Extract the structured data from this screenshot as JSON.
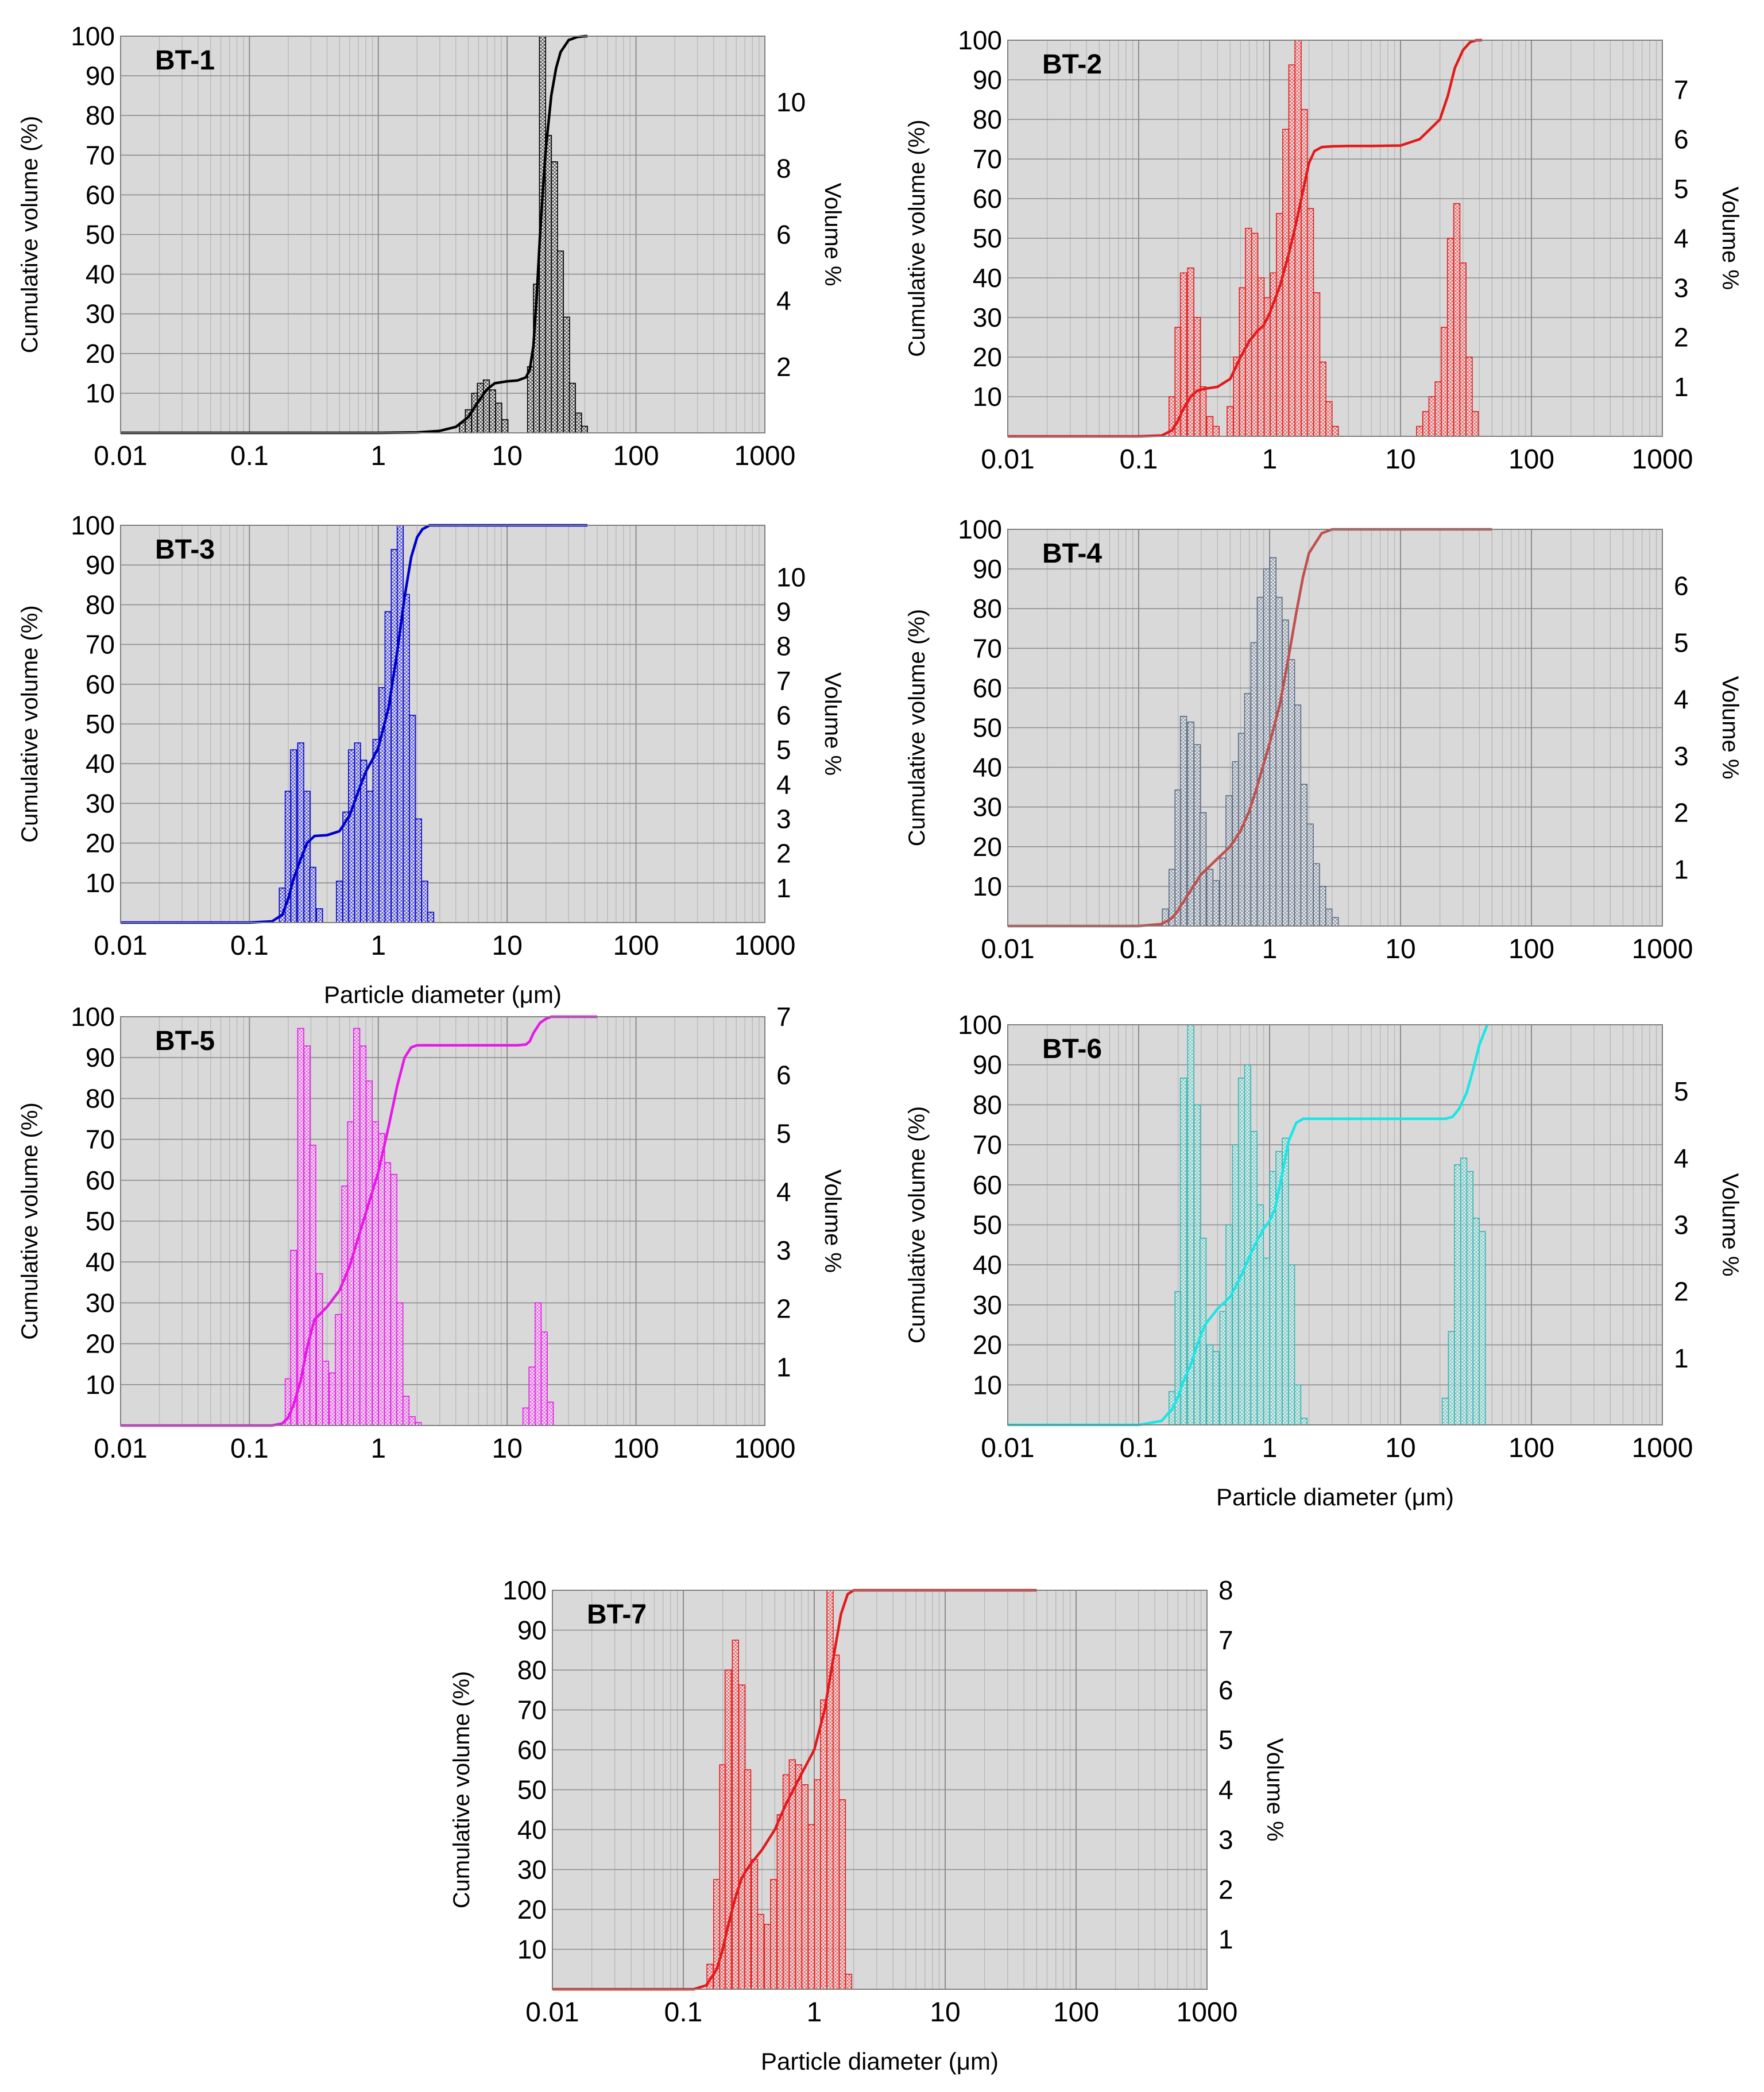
{
  "axis_text": {
    "left_label": "Cumulative volume (%)",
    "right_label": "Volume %",
    "x_label": "Particle diameter (μm)",
    "x_ticks": [
      "0.01",
      "0.1",
      "1",
      "10",
      "100",
      "1000"
    ],
    "left_ticks": [
      "10",
      "20",
      "30",
      "40",
      "50",
      "60",
      "70",
      "80",
      "90",
      "100"
    ]
  },
  "chart_data": [
    {
      "type": "bar",
      "title": "BT-1",
      "color": "#000000",
      "xlabel": "",
      "xscale": "log",
      "xlim": [
        0.01,
        1000
      ],
      "ylabel": "Cumulative volume (%)",
      "ylim": [
        0,
        100
      ],
      "y2label": "Volume %",
      "y2lim": [
        0,
        12
      ],
      "y2ticks": [
        2,
        4,
        6,
        8,
        10
      ],
      "series": [
        {
          "name": "Volume %",
          "type": "bar",
          "axis": "right",
          "x": [
            4.5,
            5.0,
            5.6,
            6.2,
            6.9,
            7.7,
            8.6,
            9.6,
            15.2,
            16.9,
            18.8,
            20.9,
            23.3,
            25.9,
            28.9,
            32.1,
            35.8,
            39.8
          ],
          "values": [
            0.3,
            0.7,
            1.2,
            1.5,
            1.6,
            1.3,
            0.9,
            0.4,
            2.0,
            4.5,
            12.0,
            9.0,
            8.2,
            5.5,
            3.5,
            1.5,
            0.6,
            0.2
          ]
        },
        {
          "name": "Cumulative volume (%)",
          "type": "line",
          "axis": "left",
          "x": [
            0.01,
            1,
            2,
            3,
            4,
            5,
            6,
            7,
            8,
            10,
            12,
            14,
            15,
            16,
            17,
            18,
            19,
            20,
            22,
            24,
            26,
            30,
            35,
            40,
            42
          ],
          "values": [
            0,
            0,
            0.1,
            0.5,
            1.5,
            4,
            8,
            11,
            12.5,
            13,
            13.2,
            14,
            16,
            22,
            35,
            50,
            62,
            72,
            85,
            92,
            96,
            99,
            99.8,
            100,
            100
          ]
        }
      ]
    },
    {
      "type": "bar",
      "title": "BT-2",
      "color": "#e31a1c",
      "xlabel": "",
      "xscale": "log",
      "xlim": [
        0.01,
        1000
      ],
      "ylabel": "Cumulative volume (%)",
      "ylim": [
        0,
        100
      ],
      "y2label": "Volume %",
      "y2lim": [
        0,
        8
      ],
      "y2ticks": [
        1,
        2,
        3,
        4,
        5,
        6,
        7
      ],
      "series": [
        {
          "name": "Volume %",
          "type": "bar",
          "axis": "right",
          "x": [
            0.18,
            0.2,
            0.22,
            0.25,
            0.28,
            0.31,
            0.35,
            0.39,
            0.5,
            0.56,
            0.62,
            0.69,
            0.77,
            0.86,
            0.96,
            1.07,
            1.19,
            1.33,
            1.48,
            1.65,
            1.84,
            2.05,
            2.29,
            2.55,
            2.84,
            3.17,
            14,
            15.6,
            17.4,
            19.4,
            21.6,
            24.1,
            26.9,
            30,
            33.4,
            37.2
          ],
          "values": [
            0.8,
            2.2,
            3.3,
            3.4,
            2.4,
            1.0,
            0.4,
            0.2,
            0.6,
            1.6,
            3.0,
            4.2,
            4.1,
            3.2,
            2.8,
            3.3,
            4.5,
            6.2,
            7.5,
            8.0,
            6.6,
            4.6,
            2.9,
            1.5,
            0.7,
            0.2,
            0.2,
            0.5,
            0.8,
            1.1,
            2.2,
            4.0,
            4.7,
            3.5,
            1.6,
            0.5
          ]
        },
        {
          "name": "Cumulative volume (%)",
          "type": "line",
          "axis": "left",
          "x": [
            0.01,
            0.1,
            0.15,
            0.18,
            0.2,
            0.22,
            0.25,
            0.28,
            0.32,
            0.4,
            0.5,
            0.6,
            0.7,
            0.8,
            0.9,
            1.0,
            1.2,
            1.4,
            1.6,
            1.8,
            2.0,
            2.2,
            2.5,
            3,
            4,
            6,
            10,
            14,
            18,
            20,
            23,
            26,
            30,
            34,
            38,
            42
          ],
          "values": [
            0,
            0,
            0.2,
            1.5,
            4,
            7,
            10,
            11.5,
            12,
            12.5,
            14.5,
            20,
            24,
            26.5,
            28,
            31,
            38,
            46,
            54,
            62,
            69,
            72,
            73,
            73.2,
            73.3,
            73.3,
            73.4,
            75,
            78.5,
            80,
            86,
            93,
            97.5,
            99.5,
            100,
            100
          ]
        }
      ]
    },
    {
      "type": "bar",
      "title": "BT-3",
      "color": "#0000cc",
      "xlabel": "Particle diameter (μm)",
      "xscale": "log",
      "xlim": [
        0.01,
        1000
      ],
      "ylabel": "Cumulative volume (%)",
      "ylim": [
        0,
        100
      ],
      "y2label": "Volume %",
      "y2lim": [
        0,
        11.5
      ],
      "y2ticks": [
        1,
        2,
        3,
        4,
        5,
        6,
        7,
        8,
        9,
        10
      ],
      "series": [
        {
          "name": "Volume %",
          "type": "bar",
          "axis": "right",
          "x": [
            0.18,
            0.2,
            0.22,
            0.25,
            0.28,
            0.31,
            0.35,
            0.5,
            0.56,
            0.62,
            0.69,
            0.77,
            0.86,
            0.96,
            1.07,
            1.19,
            1.33,
            1.48,
            1.65,
            1.84,
            2.05,
            2.29,
            2.55
          ],
          "values": [
            1.0,
            3.8,
            5.0,
            5.2,
            3.8,
            1.6,
            0.4,
            1.2,
            3.2,
            5.0,
            5.2,
            4.7,
            3.8,
            5.3,
            6.8,
            9.0,
            10.8,
            11.5,
            9.5,
            6.0,
            3.0,
            1.2,
            0.3
          ]
        },
        {
          "name": "Cumulative volume (%)",
          "type": "line",
          "axis": "left",
          "x": [
            0.01,
            0.1,
            0.15,
            0.18,
            0.2,
            0.22,
            0.25,
            0.28,
            0.32,
            0.4,
            0.5,
            0.6,
            0.7,
            0.8,
            0.9,
            1.0,
            1.2,
            1.4,
            1.6,
            1.8,
            2.0,
            2.2,
            2.5,
            3,
            5,
            10,
            42
          ],
          "values": [
            0,
            0,
            0.3,
            2,
            6,
            11,
            16,
            20,
            21.8,
            22,
            23,
            27,
            33,
            38,
            41,
            44,
            54,
            68,
            82,
            92,
            97,
            99,
            100,
            100,
            100,
            100,
            100
          ]
        }
      ]
    },
    {
      "type": "bar",
      "title": "BT-4",
      "color": "#c0504d",
      "bar_color": "#5a6b82",
      "xlabel": "",
      "xscale": "log",
      "xlim": [
        0.01,
        1000
      ],
      "ylabel": "Cumulative volume (%)",
      "ylim": [
        0,
        100
      ],
      "y2label": "Volume %",
      "y2lim": [
        0,
        7
      ],
      "y2ticks": [
        1,
        2,
        3,
        4,
        5,
        6
      ],
      "series": [
        {
          "name": "Volume %",
          "type": "bar",
          "axis": "right",
          "x": [
            0.16,
            0.18,
            0.2,
            0.22,
            0.25,
            0.28,
            0.31,
            0.35,
            0.39,
            0.44,
            0.49,
            0.55,
            0.61,
            0.68,
            0.76,
            0.85,
            0.95,
            1.06,
            1.18,
            1.32,
            1.47,
            1.64,
            1.83,
            2.04,
            2.28,
            2.54,
            2.84,
            3.17
          ],
          "values": [
            0.3,
            1.0,
            2.4,
            3.7,
            3.6,
            3.2,
            2.0,
            1.0,
            0.8,
            1.2,
            2.3,
            2.9,
            3.4,
            4.1,
            5.0,
            5.8,
            6.3,
            6.5,
            5.8,
            5.4,
            4.7,
            3.9,
            2.5,
            1.8,
            1.1,
            0.7,
            0.3,
            0.15
          ]
        },
        {
          "name": "Cumulative volume (%)",
          "type": "line",
          "axis": "left",
          "x": [
            0.01,
            0.1,
            0.15,
            0.18,
            0.2,
            0.25,
            0.3,
            0.4,
            0.5,
            0.6,
            0.7,
            0.8,
            1.0,
            1.2,
            1.4,
            1.6,
            1.8,
            2.0,
            2.5,
            3,
            5,
            10,
            50
          ],
          "values": [
            0,
            0,
            0.5,
            2,
            4,
            9,
            13,
            17,
            20,
            24,
            29,
            35,
            46,
            56,
            68,
            79,
            88,
            94,
            99,
            100,
            100,
            100,
            100
          ]
        }
      ]
    },
    {
      "type": "bar",
      "title": "BT-5",
      "color": "#e619e6",
      "xlabel": "",
      "xscale": "log",
      "xlim": [
        0.01,
        1000
      ],
      "ylabel": "Cumulative volume (%)",
      "ylim": [
        0,
        100
      ],
      "y2label": "Volume %",
      "y2lim": [
        0,
        7
      ],
      "y2ticks": [
        1,
        2,
        3,
        4,
        5,
        6,
        7
      ],
      "series": [
        {
          "name": "Volume %",
          "type": "bar",
          "axis": "right",
          "x": [
            0.2,
            0.22,
            0.25,
            0.28,
            0.31,
            0.35,
            0.39,
            0.44,
            0.49,
            0.55,
            0.61,
            0.68,
            0.76,
            0.85,
            0.95,
            1.06,
            1.18,
            1.32,
            1.47,
            1.64,
            1.83,
            2.04,
            14,
            15.6,
            17.4,
            19.4,
            21.6
          ],
          "values": [
            0.8,
            3.0,
            6.8,
            6.5,
            4.8,
            2.6,
            1.1,
            0.9,
            1.9,
            4.1,
            5.2,
            6.8,
            6.5,
            5.9,
            5.2,
            5.0,
            4.5,
            4.3,
            2.1,
            0.5,
            0.15,
            0.05,
            0.3,
            1.0,
            2.1,
            1.6,
            0.4
          ]
        },
        {
          "name": "Cumulative volume (%)",
          "type": "line",
          "axis": "left",
          "x": [
            0.01,
            0.15,
            0.18,
            0.2,
            0.22,
            0.25,
            0.28,
            0.32,
            0.4,
            0.5,
            0.6,
            0.7,
            0.8,
            1.0,
            1.2,
            1.4,
            1.6,
            1.8,
            2.0,
            3,
            8,
            12,
            14,
            15,
            16,
            18,
            20,
            22,
            25,
            50
          ],
          "values": [
            0,
            0,
            0.5,
            2,
            5,
            11,
            19,
            26,
            29,
            33,
            39,
            46,
            52,
            62,
            73,
            83,
            90,
            92.5,
            93,
            93,
            93,
            93,
            93.2,
            94,
            96,
            98.5,
            99.5,
            100,
            100,
            100
          ]
        }
      ]
    },
    {
      "type": "bar",
      "title": "BT-6",
      "color": "#19e6e6",
      "bar_color": "#35b5b0",
      "xlabel": "Particle diameter (μm)",
      "xscale": "log",
      "xlim": [
        0.01,
        1000
      ],
      "ylabel": "Cumulative volume (%)",
      "ylim": [
        0,
        100
      ],
      "y2label": "Volume %",
      "y2lim": [
        0,
        6
      ],
      "y2ticks": [
        1,
        2,
        3,
        4,
        5
      ],
      "series": [
        {
          "name": "Volume %",
          "type": "bar",
          "axis": "right",
          "x": [
            0.18,
            0.2,
            0.22,
            0.25,
            0.28,
            0.31,
            0.35,
            0.39,
            0.44,
            0.49,
            0.55,
            0.61,
            0.68,
            0.76,
            0.85,
            0.95,
            1.06,
            1.18,
            1.32,
            1.47,
            1.64,
            1.83,
            22,
            24.5,
            27.3,
            30.4,
            33.9,
            37.8,
            42.1
          ],
          "values": [
            0.5,
            2.0,
            5.2,
            6.0,
            4.8,
            2.8,
            1.2,
            1.1,
            1.7,
            3.0,
            4.2,
            5.2,
            5.4,
            4.4,
            3.3,
            2.5,
            3.8,
            4.1,
            4.3,
            2.4,
            0.6,
            0.1,
            0.4,
            1.4,
            3.9,
            4.0,
            3.8,
            3.1,
            2.9
          ]
        },
        {
          "name": "Cumulative volume (%)",
          "type": "line",
          "axis": "left",
          "x": [
            0.01,
            0.1,
            0.15,
            0.18,
            0.2,
            0.22,
            0.25,
            0.28,
            0.32,
            0.4,
            0.5,
            0.6,
            0.7,
            0.8,
            0.9,
            1.0,
            1.1,
            1.2,
            1.4,
            1.6,
            1.8,
            2,
            5,
            15,
            22,
            25,
            28,
            32,
            36,
            40,
            46
          ],
          "values": [
            0,
            0,
            1,
            4,
            7,
            11,
            15,
            20,
            25,
            29,
            32,
            37,
            42,
            46,
            49,
            51,
            54,
            60,
            71,
            75.5,
            76.5,
            76.5,
            76.5,
            76.5,
            76.5,
            77,
            79,
            83,
            89,
            95,
            100
          ]
        }
      ]
    },
    {
      "type": "bar",
      "title": "BT-7",
      "color": "#e31a1c",
      "xlabel": "Particle diameter (μm)",
      "xscale": "log",
      "xlim": [
        0.01,
        1000
      ],
      "ylabel": "Cumulative volume (%)",
      "ylim": [
        0,
        100
      ],
      "y2label": "Volume %",
      "y2lim": [
        0,
        8
      ],
      "y2ticks": [
        1,
        2,
        3,
        4,
        5,
        6,
        7,
        8
      ],
      "series": [
        {
          "name": "Volume %",
          "type": "bar",
          "axis": "right",
          "x": [
            0.16,
            0.18,
            0.2,
            0.22,
            0.25,
            0.28,
            0.31,
            0.35,
            0.39,
            0.44,
            0.49,
            0.55,
            0.61,
            0.68,
            0.76,
            0.85,
            0.95,
            1.06,
            1.18,
            1.32,
            1.47,
            1.64,
            1.83
          ],
          "values": [
            0.5,
            2.2,
            4.5,
            6.4,
            7.0,
            6.1,
            4.4,
            2.6,
            1.5,
            1.3,
            2.2,
            3.5,
            4.3,
            4.6,
            4.5,
            4.1,
            3.3,
            4.2,
            5.8,
            8.0,
            6.7,
            3.8,
            0.3
          ]
        },
        {
          "name": "Cumulative volume (%)",
          "type": "line",
          "axis": "left",
          "x": [
            0.01,
            0.12,
            0.15,
            0.18,
            0.2,
            0.22,
            0.25,
            0.28,
            0.32,
            0.4,
            0.5,
            0.6,
            0.8,
            1.0,
            1.2,
            1.4,
            1.6,
            1.8,
            2.0,
            2.5,
            5,
            10,
            50
          ],
          "values": [
            0,
            0,
            1,
            5,
            10,
            16,
            23,
            28,
            31,
            35,
            40,
            46,
            54,
            60,
            70,
            83,
            94,
            99,
            100,
            100,
            100,
            100,
            100
          ]
        }
      ]
    }
  ]
}
